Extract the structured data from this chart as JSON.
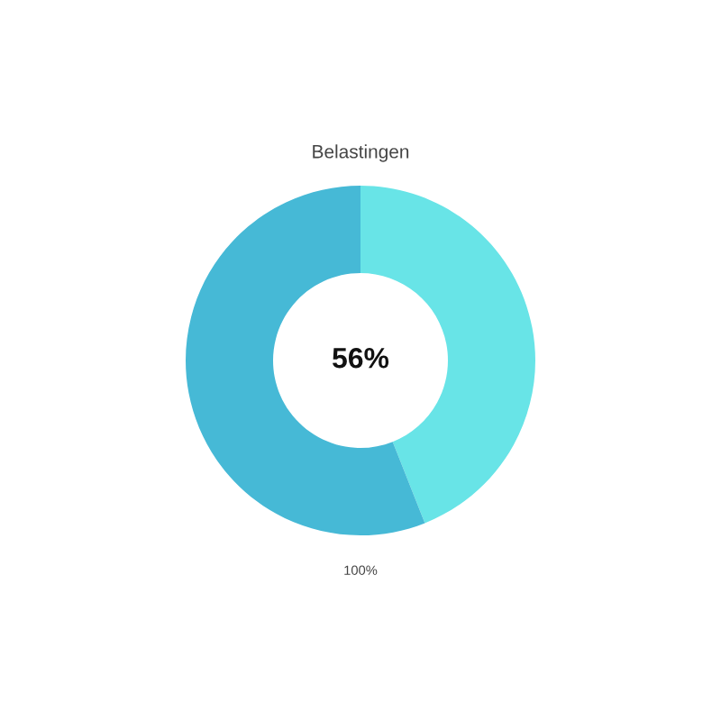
{
  "chart_data": {
    "type": "donut",
    "title": "Belastingen",
    "categories": [
      null,
      null
    ],
    "values": [
      44,
      56
    ],
    "colors": [
      "#68e4e7",
      "#46b9d6"
    ],
    "annotations": [
      "56%",
      "100%"
    ]
  }
}
